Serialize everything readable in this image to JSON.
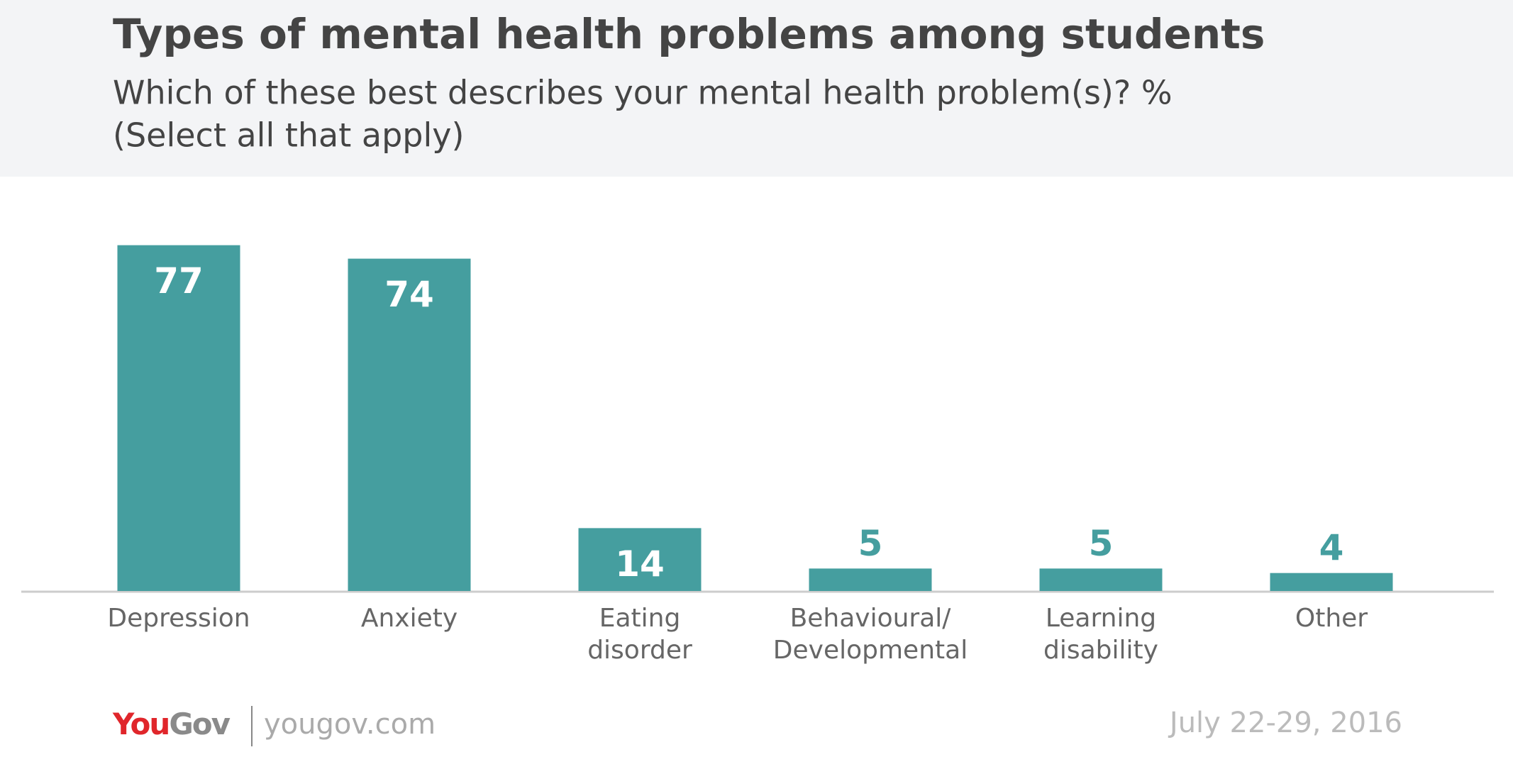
{
  "chart_data": {
    "type": "bar",
    "title": "Types of mental health problems among students",
    "subtitle": [
      "Which of these best describes your mental health problem(s)? %",
      "(Select all that apply)"
    ],
    "categories": [
      "Depression",
      "Anxiety",
      "Eating disorder",
      "Behavioural/ Developmental",
      "Learning disability",
      "Other"
    ],
    "values": [
      77,
      74,
      14,
      5,
      5,
      4
    ],
    "color": "#459e9f",
    "ylim": [
      0,
      100
    ],
    "source": "yougov.com",
    "brand": "YouGov",
    "date": "July 22-29, 2016"
  }
}
